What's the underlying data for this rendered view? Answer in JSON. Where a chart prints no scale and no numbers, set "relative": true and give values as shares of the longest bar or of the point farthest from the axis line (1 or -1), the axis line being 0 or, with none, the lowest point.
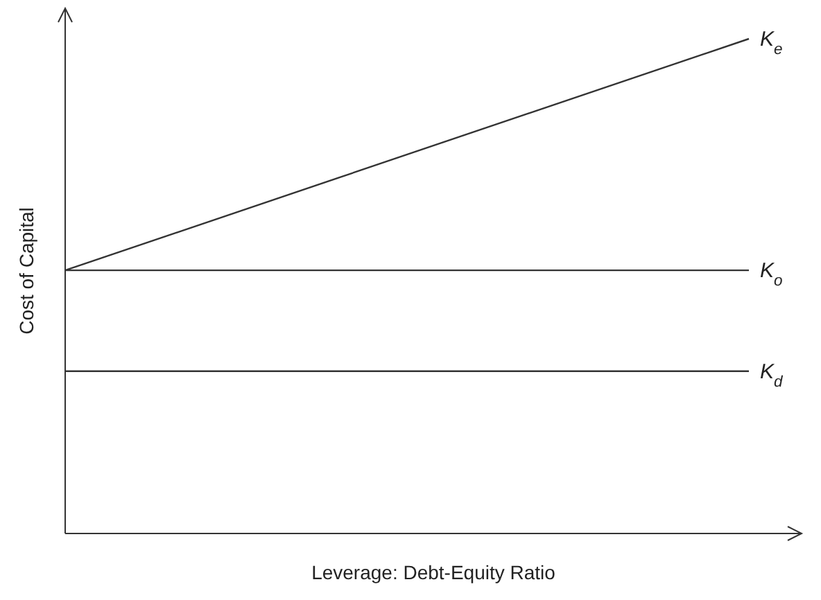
{
  "chart_data": {
    "type": "line",
    "relative": true,
    "xlabel": "Leverage: Debt-Equity Ratio",
    "ylabel": "Cost of Capital",
    "categories": [
      null,
      null
    ],
    "marker": "none",
    "line_style": "solid",
    "series": [
      {
        "name": "K$_{e}$",
        "color": "#333333",
        "values": [
          0.532,
          1
        ]
      },
      {
        "name": "K$_{o}$",
        "color": "#333333",
        "values": [
          0.532,
          0.532
        ]
      },
      {
        "name": "K$_{d}$",
        "color": "#333333",
        "values": [
          0.328,
          0.328
        ]
      }
    ]
  }
}
